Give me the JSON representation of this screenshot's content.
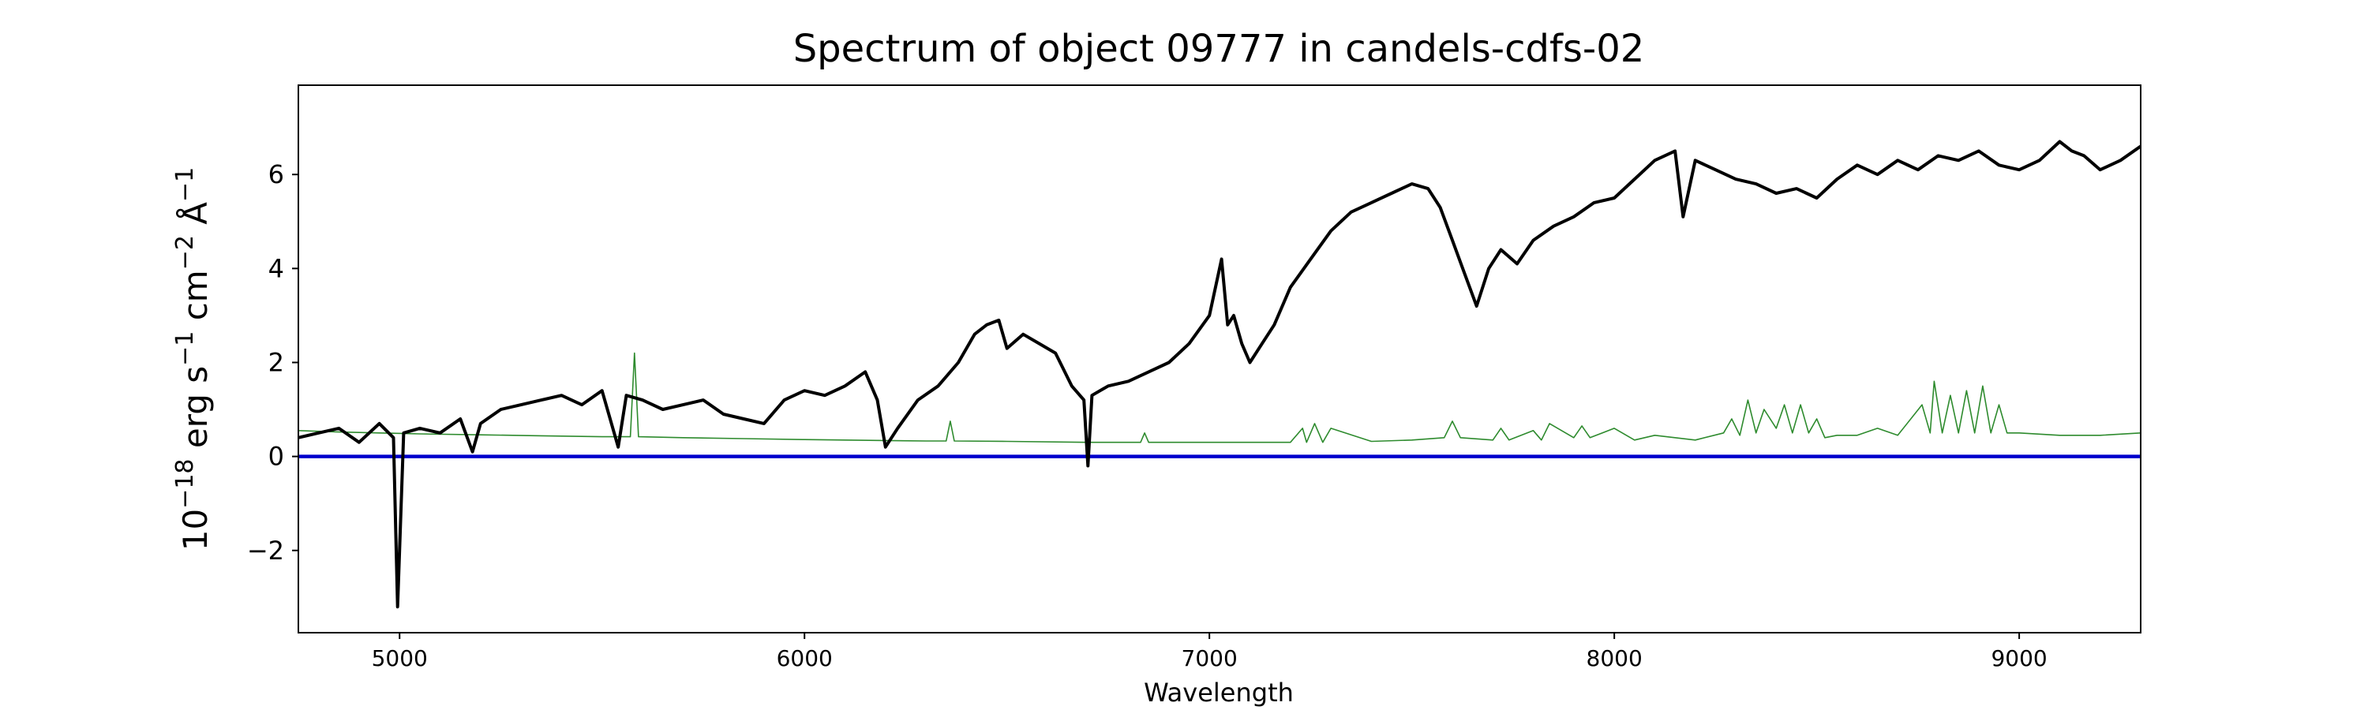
{
  "chart_data": {
    "type": "line",
    "title": "Spectrum of object 09777 in candels-cdfs-02",
    "xlabel": "Wavelength",
    "ylabel_base": "10",
    "ylabel_exp": "−18",
    "ylabel_unit1": " erg s",
    "ylabel_unit1_exp": "−1",
    "ylabel_unit2": " cm",
    "ylabel_unit2_exp": "−2",
    "ylabel_unit3": " Å",
    "ylabel_unit3_exp": "−1",
    "xlim": [
      4750,
      9300
    ],
    "ylim": [
      -3.75,
      7.9
    ],
    "xticks": [
      5000,
      6000,
      7000,
      8000,
      9000
    ],
    "xtick_labels": [
      "5000",
      "6000",
      "7000",
      "8000",
      "9000"
    ],
    "yticks": [
      -2,
      0,
      2,
      4,
      6
    ],
    "ytick_labels": [
      "−2",
      "0",
      "2",
      "4",
      "6"
    ],
    "grid": false,
    "legend": "none",
    "series": [
      {
        "role": "flux",
        "color": "#000000",
        "x": [
          4750,
          4800,
          4850,
          4900,
          4950,
          4985,
          4995,
          5010,
          5050,
          5100,
          5150,
          5180,
          5200,
          5250,
          5300,
          5350,
          5400,
          5450,
          5500,
          5540,
          5560,
          5600,
          5650,
          5700,
          5750,
          5800,
          5850,
          5900,
          5950,
          6000,
          6050,
          6100,
          6150,
          6180,
          6200,
          6230,
          6280,
          6330,
          6380,
          6420,
          6450,
          6480,
          6500,
          6540,
          6580,
          6620,
          6660,
          6690,
          6700,
          6710,
          6750,
          6800,
          6850,
          6900,
          6950,
          7000,
          7030,
          7045,
          7060,
          7080,
          7100,
          7130,
          7160,
          7200,
          7250,
          7300,
          7350,
          7400,
          7450,
          7500,
          7540,
          7570,
          7600,
          7630,
          7660,
          7690,
          7720,
          7760,
          7800,
          7850,
          7900,
          7950,
          8000,
          8050,
          8100,
          8150,
          8170,
          8200,
          8250,
          8300,
          8350,
          8400,
          8450,
          8500,
          8550,
          8600,
          8650,
          8700,
          8750,
          8800,
          8850,
          8900,
          8950,
          9000,
          9050,
          9100,
          9130,
          9160,
          9200,
          9250,
          9300
        ],
        "y": [
          0.4,
          0.5,
          0.6,
          0.3,
          0.7,
          0.4,
          -3.2,
          0.5,
          0.6,
          0.5,
          0.8,
          0.1,
          0.7,
          1.0,
          1.1,
          1.2,
          1.3,
          1.1,
          1.4,
          0.2,
          1.3,
          1.2,
          1.0,
          1.1,
          1.2,
          0.9,
          0.8,
          0.7,
          1.2,
          1.4,
          1.3,
          1.5,
          1.8,
          1.2,
          0.2,
          0.6,
          1.2,
          1.5,
          2.0,
          2.6,
          2.8,
          2.9,
          2.3,
          2.6,
          2.4,
          2.2,
          1.5,
          1.2,
          -0.2,
          1.3,
          1.5,
          1.6,
          1.8,
          2.0,
          2.4,
          3.0,
          4.2,
          2.8,
          3.0,
          2.4,
          2.0,
          2.4,
          2.8,
          3.6,
          4.2,
          4.8,
          5.2,
          5.4,
          5.6,
          5.8,
          5.7,
          5.3,
          4.6,
          3.9,
          3.2,
          4.0,
          4.4,
          4.1,
          4.6,
          4.9,
          5.1,
          5.4,
          5.5,
          5.9,
          6.3,
          6.5,
          5.1,
          6.3,
          6.1,
          5.9,
          5.8,
          5.6,
          5.7,
          5.5,
          5.9,
          6.2,
          6.0,
          6.3,
          6.1,
          6.4,
          6.3,
          6.5,
          6.2,
          6.1,
          6.3,
          6.7,
          6.5,
          6.4,
          6.1,
          6.3,
          6.6
        ]
      },
      {
        "role": "error",
        "color": "#2e8b2e",
        "x": [
          4750,
          4850,
          4950,
          5050,
          5200,
          5350,
          5500,
          5570,
          5580,
          5590,
          5700,
          5850,
          6000,
          6200,
          6300,
          6350,
          6360,
          6370,
          6500,
          6700,
          6830,
          6840,
          6850,
          7000,
          7200,
          7230,
          7240,
          7260,
          7280,
          7300,
          7400,
          7500,
          7580,
          7600,
          7620,
          7700,
          7720,
          7740,
          7800,
          7820,
          7840,
          7900,
          7920,
          7940,
          8000,
          8050,
          8100,
          8200,
          8270,
          8290,
          8310,
          8330,
          8350,
          8370,
          8400,
          8420,
          8440,
          8460,
          8480,
          8500,
          8520,
          8550,
          8600,
          8650,
          8700,
          8760,
          8780,
          8790,
          8810,
          8830,
          8850,
          8870,
          8890,
          8910,
          8930,
          8950,
          8970,
          9000,
          9100,
          9200,
          9300
        ],
        "y": [
          0.55,
          0.52,
          0.5,
          0.48,
          0.46,
          0.44,
          0.42,
          0.42,
          2.2,
          0.42,
          0.4,
          0.38,
          0.36,
          0.34,
          0.33,
          0.33,
          0.75,
          0.33,
          0.32,
          0.3,
          0.3,
          0.5,
          0.3,
          0.3,
          0.3,
          0.6,
          0.3,
          0.7,
          0.3,
          0.6,
          0.32,
          0.35,
          0.4,
          0.75,
          0.4,
          0.35,
          0.6,
          0.35,
          0.55,
          0.35,
          0.7,
          0.4,
          0.65,
          0.4,
          0.6,
          0.35,
          0.45,
          0.35,
          0.5,
          0.8,
          0.45,
          1.2,
          0.5,
          1.0,
          0.6,
          1.1,
          0.5,
          1.1,
          0.5,
          0.8,
          0.4,
          0.45,
          0.45,
          0.6,
          0.45,
          1.1,
          0.5,
          1.6,
          0.5,
          1.3,
          0.5,
          1.4,
          0.5,
          1.5,
          0.5,
          1.1,
          0.5,
          0.5,
          0.45,
          0.45,
          0.5
        ]
      },
      {
        "role": "zero-line",
        "color": "#0000cc",
        "x": [
          4750,
          9300
        ],
        "y": [
          0,
          0
        ]
      }
    ]
  }
}
